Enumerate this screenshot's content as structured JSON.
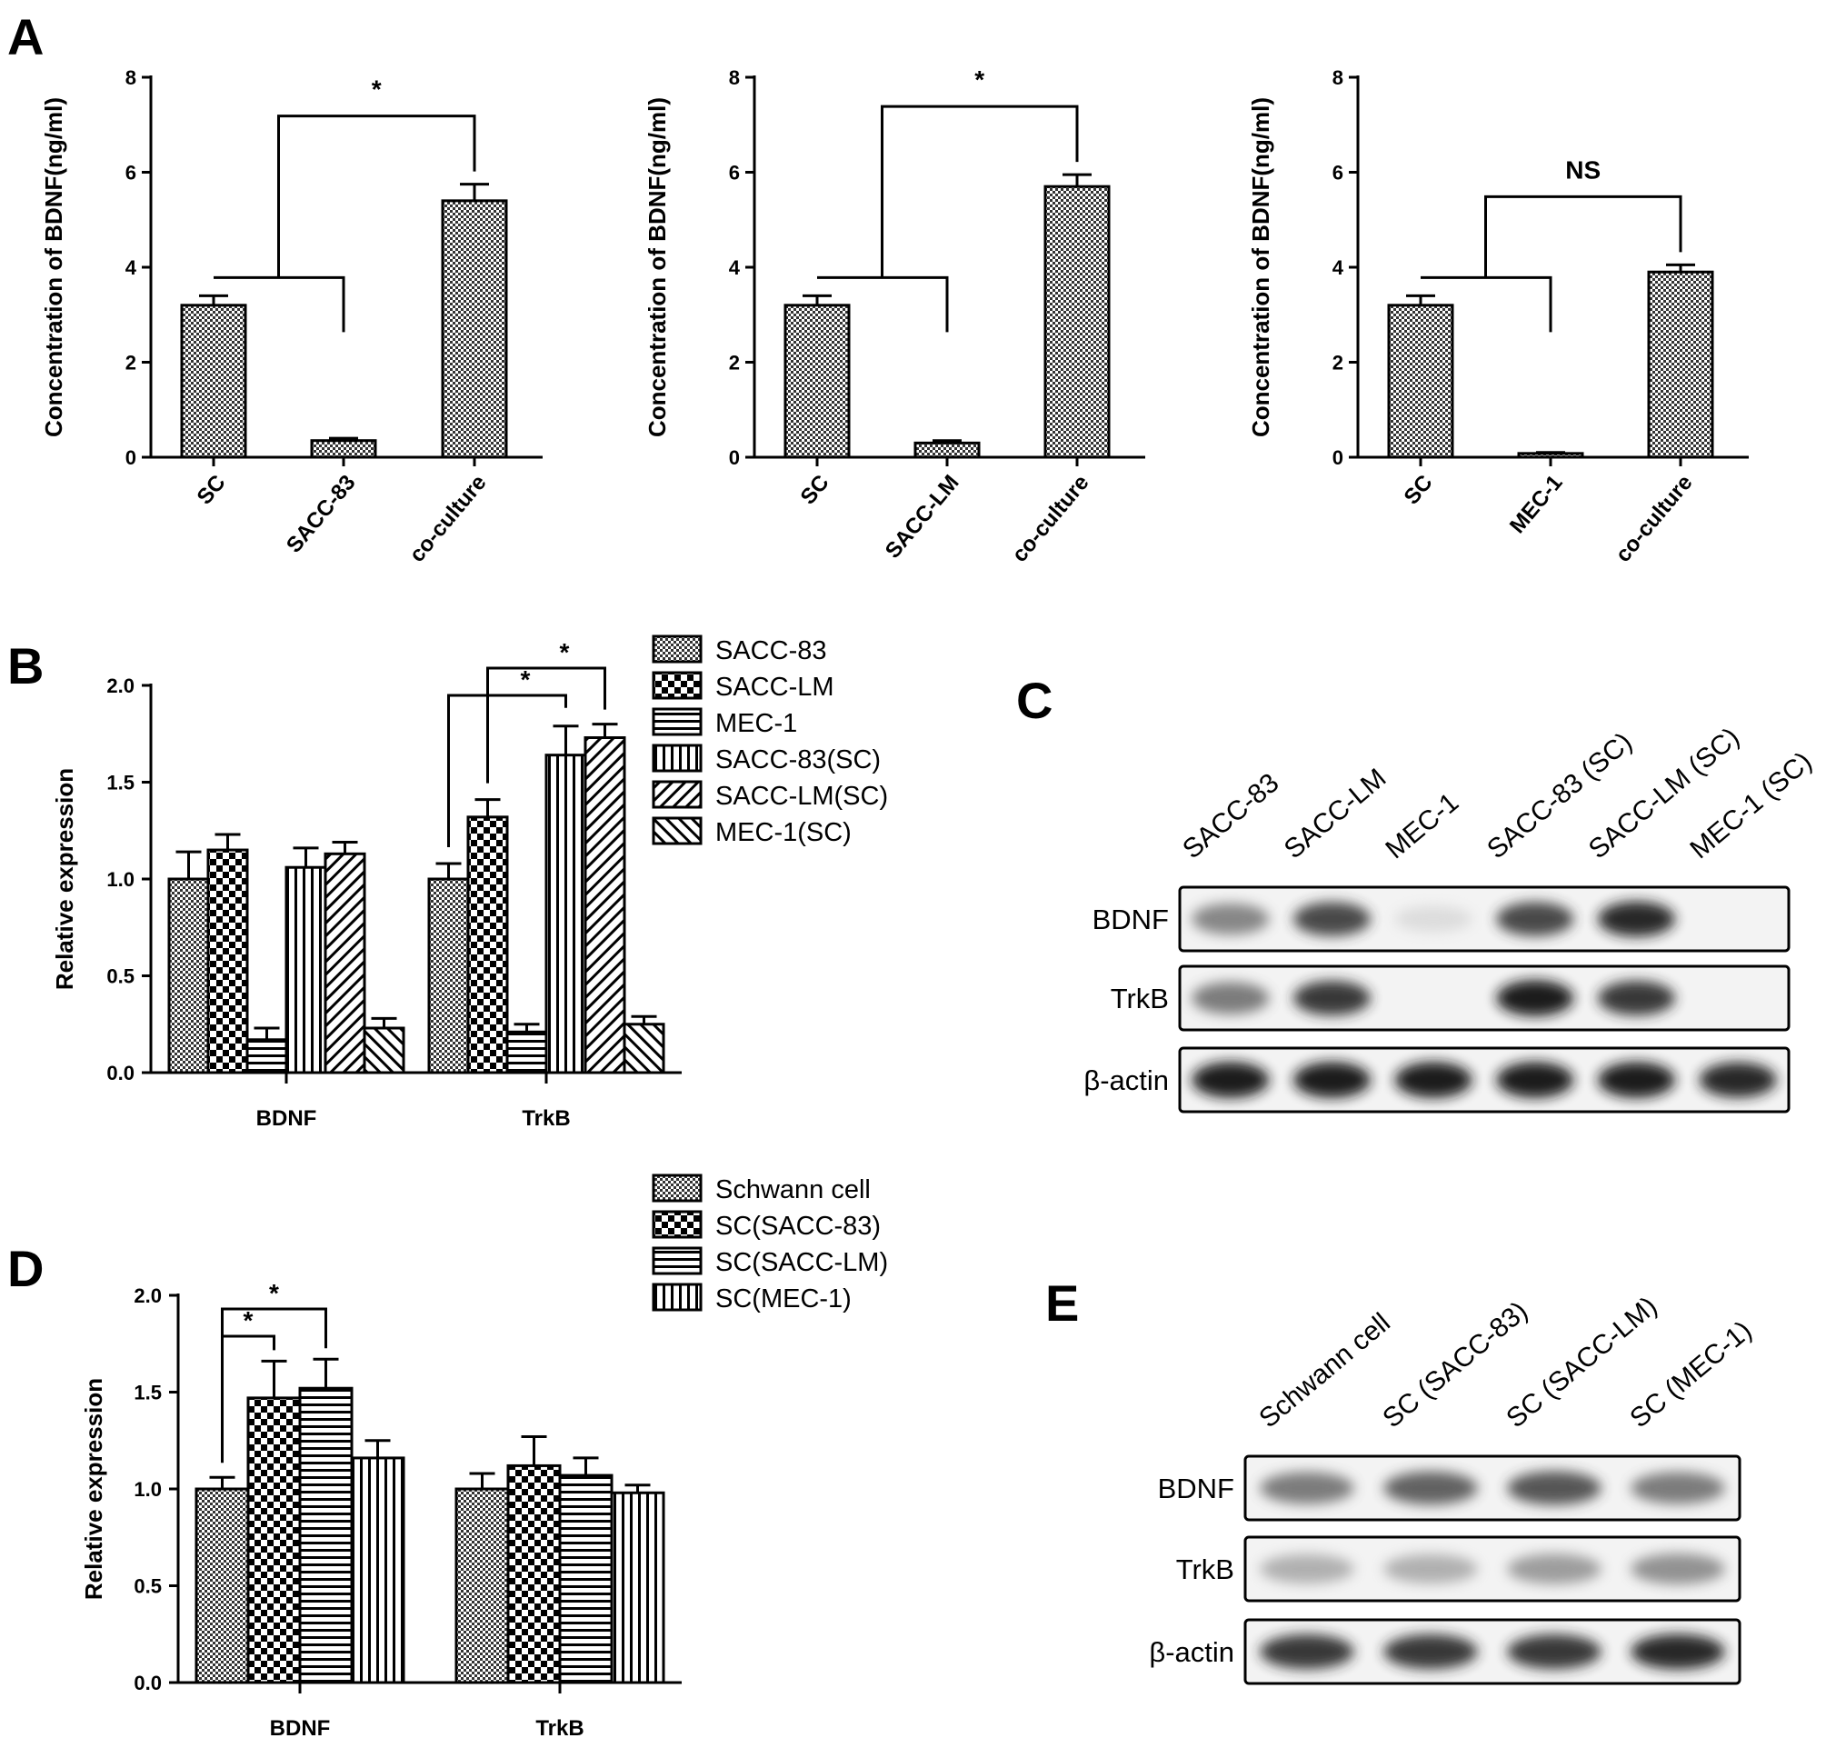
{
  "chart_data": [
    {
      "panel": "A",
      "type": "bar",
      "ylabel": "Concentration of BDNF(ng/ml)",
      "ylim": [
        0,
        8
      ],
      "yticks": [
        0,
        2,
        4,
        6,
        8
      ],
      "categories": [
        "SC",
        "SACC-83",
        "co-culture"
      ],
      "values": [
        3.2,
        0.35,
        5.4
      ],
      "errors": [
        0.2,
        0.05,
        0.35
      ],
      "significance": {
        "label": "*",
        "compare": "SC+SACC-83 vs co-culture"
      }
    },
    {
      "type": "bar",
      "ylabel": "Concentration of BDNF(ng/ml)",
      "ylim": [
        0,
        8
      ],
      "yticks": [
        0,
        2,
        4,
        6,
        8
      ],
      "categories": [
        "SC",
        "SACC-LM",
        "co-culture"
      ],
      "values": [
        3.2,
        0.3,
        5.7
      ],
      "errors": [
        0.2,
        0.05,
        0.25
      ],
      "significance": {
        "label": "*",
        "compare": "SC+SACC-LM vs co-culture"
      }
    },
    {
      "type": "bar",
      "ylabel": "Concentration of BDNF(ng/ml)",
      "ylim": [
        0,
        8
      ],
      "yticks": [
        0,
        2,
        4,
        6,
        8
      ],
      "categories": [
        "SC",
        "MEC-1",
        "co-culture"
      ],
      "values": [
        3.2,
        0.08,
        3.9
      ],
      "errors": [
        0.2,
        0.02,
        0.15
      ],
      "significance": {
        "label": "NS",
        "compare": "SC+MEC-1 vs co-culture"
      }
    },
    {
      "panel": "B",
      "type": "bar",
      "ylabel": "Relative expression",
      "ylim": [
        0,
        2.0
      ],
      "yticks": [
        "0.0",
        "0.5",
        "1.0",
        "1.5",
        "2.0"
      ],
      "categories": [
        "BDNF",
        "TrkB"
      ],
      "series": [
        {
          "name": "SACC-83",
          "values": [
            1.0,
            1.0
          ],
          "errors": [
            0.14,
            0.08
          ]
        },
        {
          "name": "SACC-LM",
          "values": [
            1.15,
            1.32
          ],
          "errors": [
            0.08,
            0.09
          ]
        },
        {
          "name": "MEC-1",
          "values": [
            0.17,
            0.21
          ],
          "errors": [
            0.06,
            0.04
          ]
        },
        {
          "name": "SACC-83(SC)",
          "values": [
            1.06,
            1.64
          ],
          "errors": [
            0.1,
            0.15
          ]
        },
        {
          "name": "SACC-LM(SC)",
          "values": [
            1.13,
            1.73
          ],
          "errors": [
            0.06,
            0.07
          ]
        },
        {
          "name": "MEC-1(SC)",
          "values": [
            0.23,
            0.25
          ],
          "errors": [
            0.05,
            0.04
          ]
        }
      ],
      "significance": [
        {
          "label": "*",
          "compare": "TrkB: SACC-83 vs SACC-83(SC)"
        },
        {
          "label": "*",
          "compare": "TrkB: SACC-LM vs SACC-LM(SC)"
        }
      ],
      "legend": "right"
    },
    {
      "panel": "D",
      "type": "bar",
      "ylabel": "Relative expression",
      "ylim": [
        0,
        2.0
      ],
      "yticks": [
        "0.0",
        "0.5",
        "1.0",
        "1.5",
        "2.0"
      ],
      "categories": [
        "BDNF",
        "TrkB"
      ],
      "series": [
        {
          "name": "Schwann cell",
          "values": [
            1.0,
            1.0
          ],
          "errors": [
            0.06,
            0.08
          ]
        },
        {
          "name": "SC(SACC-83)",
          "values": [
            1.47,
            1.12
          ],
          "errors": [
            0.19,
            0.15
          ]
        },
        {
          "name": "SC(SACC-LM)",
          "values": [
            1.52,
            1.07
          ],
          "errors": [
            0.15,
            0.09
          ]
        },
        {
          "name": "SC(MEC-1)",
          "values": [
            1.16,
            0.98
          ],
          "errors": [
            0.09,
            0.04
          ]
        }
      ],
      "significance": [
        {
          "label": "*",
          "compare": "BDNF: Schwann cell vs SC(SACC-83)"
        },
        {
          "label": "*",
          "compare": "BDNF: Schwann cell vs SC(SACC-LM)"
        }
      ],
      "legend": "top"
    }
  ],
  "blots": [
    {
      "panel": "C",
      "lanes": [
        "SACC-83",
        "SACC-LM",
        "MEC-1",
        "SACC-83 (SC)",
        "SACC-LM (SC)",
        "MEC-1 (SC)"
      ],
      "rows": [
        {
          "label": "BDNF",
          "intensity": [
            0.55,
            0.8,
            0.05,
            0.8,
            0.9,
            0.0
          ]
        },
        {
          "label": "TrkB",
          "intensity": [
            0.6,
            0.85,
            0.0,
            0.95,
            0.85,
            0.0
          ]
        },
        {
          "label": "β-actin",
          "intensity": [
            0.95,
            0.95,
            0.95,
            0.95,
            0.95,
            0.9
          ]
        }
      ]
    },
    {
      "panel": "E",
      "lanes": [
        "Schwann cell",
        "SC (SACC-83)",
        "SC (SACC-LM)",
        "SC (MEC-1)"
      ],
      "rows": [
        {
          "label": "BDNF",
          "intensity": [
            0.6,
            0.7,
            0.75,
            0.6
          ]
        },
        {
          "label": "TrkB",
          "intensity": [
            0.35,
            0.35,
            0.45,
            0.5
          ]
        },
        {
          "label": "β-actin",
          "intensity": [
            0.85,
            0.85,
            0.85,
            0.9
          ]
        }
      ]
    }
  ]
}
